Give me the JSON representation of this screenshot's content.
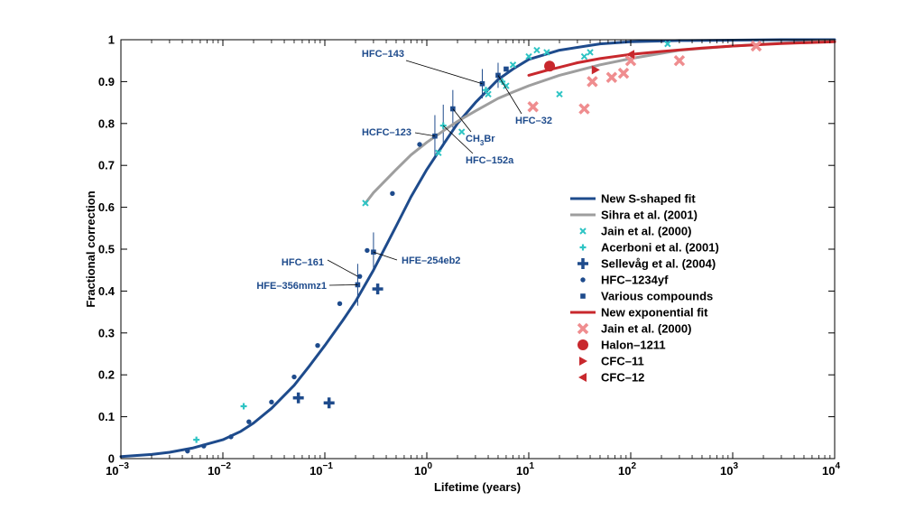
{
  "chart_data": {
    "type": "scatter",
    "xlabel": "Lifetime (years)",
    "ylabel": "Fractional correction",
    "xscale": "log",
    "xlim": [
      0.001,
      10000
    ],
    "ylim": [
      0,
      1
    ],
    "x_ticks": [
      {
        "value": 0.001,
        "base": "10",
        "exp": "−3"
      },
      {
        "value": 0.01,
        "base": "10",
        "exp": "−2"
      },
      {
        "value": 0.1,
        "base": "10",
        "exp": "−1"
      },
      {
        "value": 1,
        "base": "10",
        "exp": "0"
      },
      {
        "value": 10,
        "base": "10",
        "exp": "1"
      },
      {
        "value": 100,
        "base": "10",
        "exp": "2"
      },
      {
        "value": 1000,
        "base": "10",
        "exp": "3"
      },
      {
        "value": 10000,
        "base": "10",
        "exp": "4"
      }
    ],
    "y_ticks": [
      "0",
      "0.1",
      "0.2",
      "0.3",
      "0.4",
      "0.5",
      "0.6",
      "0.7",
      "0.8",
      "0.9",
      "1"
    ],
    "grid": false,
    "legend_position": "right-middle",
    "colors": {
      "blue": "#1e4b8c",
      "gray": "#9e9e9e",
      "cyan": "#2ec4c4",
      "red": "#c8282d",
      "pink": "#ef8d8f"
    },
    "series": [
      {
        "name": "New S-shaped fit",
        "kind": "line",
        "color": "#1e4b8c",
        "x": [
          0.001,
          0.002,
          0.003,
          0.005,
          0.01,
          0.015,
          0.02,
          0.03,
          0.05,
          0.07,
          0.1,
          0.15,
          0.2,
          0.3,
          0.5,
          0.7,
          1,
          1.5,
          2,
          3,
          5,
          7,
          10,
          20,
          50,
          100,
          300,
          1000,
          3000,
          10000
        ],
        "y": [
          0.005,
          0.01,
          0.015,
          0.025,
          0.045,
          0.065,
          0.085,
          0.12,
          0.175,
          0.22,
          0.27,
          0.33,
          0.375,
          0.45,
          0.555,
          0.625,
          0.69,
          0.755,
          0.8,
          0.85,
          0.905,
          0.93,
          0.953,
          0.975,
          0.99,
          0.995,
          0.998,
          0.999,
          1,
          1
        ]
      },
      {
        "name": "Sihra et al. (2001)",
        "kind": "line",
        "color": "#9e9e9e",
        "x": [
          0.25,
          0.3,
          0.5,
          0.7,
          1,
          1.5,
          2,
          3,
          5,
          7,
          10,
          20,
          50,
          100,
          300,
          1000,
          3000,
          10000
        ],
        "y": [
          0.61,
          0.635,
          0.69,
          0.725,
          0.755,
          0.785,
          0.805,
          0.83,
          0.86,
          0.875,
          0.89,
          0.915,
          0.94,
          0.955,
          0.975,
          0.985,
          0.992,
          0.997
        ]
      },
      {
        "name": "Jain et al. (2000)",
        "kind": "marker",
        "marker": "x",
        "color": "#2ec4c4",
        "x": [
          0.25,
          1.3,
          2.2,
          4,
          6,
          7,
          10,
          12,
          15,
          20,
          35,
          40,
          230
        ],
        "y": [
          0.61,
          0.73,
          0.78,
          0.87,
          0.89,
          0.94,
          0.96,
          0.975,
          0.97,
          0.87,
          0.96,
          0.97,
          0.99
        ]
      },
      {
        "name": "Acerboni et al. (2001)",
        "kind": "marker",
        "marker": "plus",
        "color": "#2ec4c4",
        "x": [
          0.0055,
          0.016,
          1.45,
          3.8,
          5.5
        ],
        "y": [
          0.045,
          0.125,
          0.795,
          0.88,
          0.9
        ]
      },
      {
        "name": "Sellevåg et al. (2004)",
        "kind": "marker",
        "marker": "bigplus",
        "color": "#1e4b8c",
        "x": [
          0.055,
          0.11,
          0.33
        ],
        "y": [
          0.145,
          0.133,
          0.405
        ]
      },
      {
        "name": "HFC–1234yf",
        "kind": "marker",
        "marker": "dot",
        "color": "#1e4b8c",
        "x": [
          0.0045,
          0.0065,
          0.012,
          0.018,
          0.03,
          0.05,
          0.085,
          0.14,
          0.22,
          0.26,
          0.46,
          0.85
        ],
        "y": [
          0.018,
          0.03,
          0.052,
          0.088,
          0.135,
          0.195,
          0.27,
          0.37,
          0.435,
          0.497,
          0.633,
          0.75
        ]
      },
      {
        "name": "Various compounds",
        "kind": "marker",
        "marker": "square",
        "color": "#1e4b8c",
        "x": [
          0.21,
          0.3,
          1.2,
          1.8,
          3.5,
          5,
          6
        ],
        "y": [
          0.415,
          0.493,
          0.77,
          0.835,
          0.895,
          0.915,
          0.93
        ]
      },
      {
        "name": "New exponential fit",
        "kind": "line",
        "color": "#c8282d",
        "x": [
          10,
          15,
          20,
          30,
          50,
          100,
          200,
          500,
          1000,
          3000,
          10000
        ],
        "y": [
          0.915,
          0.927,
          0.934,
          0.945,
          0.955,
          0.965,
          0.972,
          0.98,
          0.985,
          0.991,
          0.995
        ]
      },
      {
        "name": "Jain et al. (2000)",
        "kind": "marker",
        "marker": "bigx",
        "color": "#ef8d8f",
        "x": [
          11,
          35,
          42,
          65,
          85,
          100,
          300,
          1700
        ],
        "y": [
          0.84,
          0.835,
          0.9,
          0.91,
          0.92,
          0.95,
          0.95,
          0.985
        ]
      },
      {
        "name": "Halon–1211",
        "kind": "marker",
        "marker": "circle",
        "color": "#c8282d",
        "x": [
          16
        ],
        "y": [
          0.937
        ]
      },
      {
        "name": "CFC–11",
        "kind": "marker",
        "marker": "triright",
        "color": "#c8282d",
        "x": [
          45
        ],
        "y": [
          0.928
        ]
      },
      {
        "name": "CFC–12",
        "kind": "marker",
        "marker": "trileft",
        "color": "#c8282d",
        "x": [
          100
        ],
        "y": [
          0.965
        ]
      }
    ],
    "error_bars": [
      {
        "x": 0.21,
        "y": 0.415,
        "low": 0.365,
        "high": 0.465
      },
      {
        "x": 0.3,
        "y": 0.493,
        "low": 0.445,
        "high": 0.54
      },
      {
        "x": 1.2,
        "y": 0.77,
        "low": 0.72,
        "high": 0.82
      },
      {
        "x": 1.45,
        "y": 0.795,
        "low": 0.745,
        "high": 0.845
      },
      {
        "x": 1.8,
        "y": 0.835,
        "low": 0.79,
        "high": 0.88
      },
      {
        "x": 3.5,
        "y": 0.895,
        "low": 0.86,
        "high": 0.93
      },
      {
        "x": 5,
        "y": 0.915,
        "low": 0.885,
        "high": 0.945
      }
    ],
    "annotations": [
      {
        "text": "HFC–143",
        "x": 3.5,
        "y": 0.895,
        "anchor": "end"
      },
      {
        "text": "HFC–32",
        "x": 5,
        "y": 0.915,
        "anchor": "start"
      },
      {
        "text": "CH",
        "sub": "3",
        "suffix": "Br",
        "x": 1.8,
        "y": 0.835,
        "anchor": "start"
      },
      {
        "text": "HCFC–123",
        "x": 1.2,
        "y": 0.77,
        "anchor": "end"
      },
      {
        "text": "HFC–152a",
        "x": 1.45,
        "y": 0.795,
        "anchor": "start"
      },
      {
        "text": "HFC–161",
        "x": 0.21,
        "y": 0.435,
        "anchor": "end"
      },
      {
        "text": "HFE–254eb2",
        "x": 0.3,
        "y": 0.493,
        "anchor": "start"
      },
      {
        "text": "HFE–356mmz1",
        "x": 0.21,
        "y": 0.415,
        "anchor": "end"
      }
    ]
  }
}
